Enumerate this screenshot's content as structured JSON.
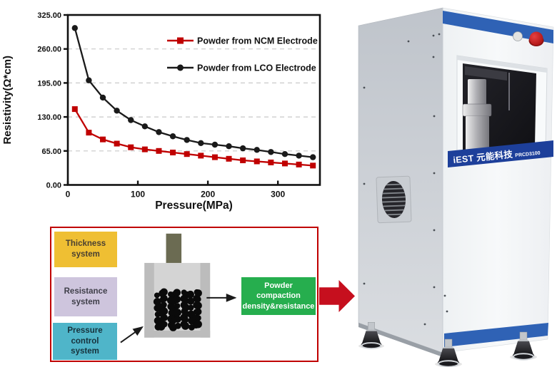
{
  "chart_data": {
    "type": "line",
    "title": "",
    "xlabel": "Pressure(MPa)",
    "ylabel": "Resistivity(Ω*cm)",
    "xlim": [
      0,
      360
    ],
    "ylim": [
      0,
      325
    ],
    "xticks": [
      0,
      100,
      200,
      300
    ],
    "xtick_labels": [
      "0",
      "100",
      "200",
      "300"
    ],
    "yticks": [
      0,
      65,
      130,
      195,
      260,
      325
    ],
    "ytick_labels": [
      "0.00",
      "65.00",
      "130.00",
      "195.00",
      "260.00",
      "325.00"
    ],
    "grid": "horizontal dashed",
    "legend_position": "upper right inside",
    "x": [
      10,
      30,
      50,
      70,
      90,
      110,
      130,
      150,
      170,
      190,
      210,
      230,
      250,
      270,
      290,
      310,
      330,
      350
    ],
    "series": [
      {
        "name": "Powder from NCM Electrode",
        "color": "#C00000",
        "marker": "square",
        "values": [
          145,
          100,
          87,
          79,
          72,
          68,
          65,
          62,
          59,
          56,
          53,
          50,
          47,
          45,
          43,
          41,
          39,
          37
        ]
      },
      {
        "name": "Powder from LCO Electrode",
        "color": "#1A1A1A",
        "marker": "circle",
        "values": [
          300,
          200,
          167,
          142,
          124,
          112,
          101,
          93,
          86,
          80,
          77,
          74,
          70,
          67,
          63,
          59,
          56,
          53
        ]
      }
    ]
  },
  "diagram": {
    "border_color": "#C00000",
    "arrow_color": "#C60F1E",
    "boxes": {
      "thickness": {
        "label": "Thickness\nsystem",
        "bg": "#EFBF33"
      },
      "resistance": {
        "label": "Resistance\nsystem",
        "bg": "#CEC5DD"
      },
      "pressure": {
        "label": "Pressure control\nsystem",
        "bg": "#4FB5C9"
      },
      "output": {
        "label": "Powder\ncompaction\ndensity&resistance",
        "bg": "#26AE4E"
      }
    }
  },
  "machine": {
    "brand": "iEST 元能科技",
    "model": "PRCD3100",
    "accent_blue": "#2F62B5",
    "banner_blue": "#1D3F9A"
  }
}
